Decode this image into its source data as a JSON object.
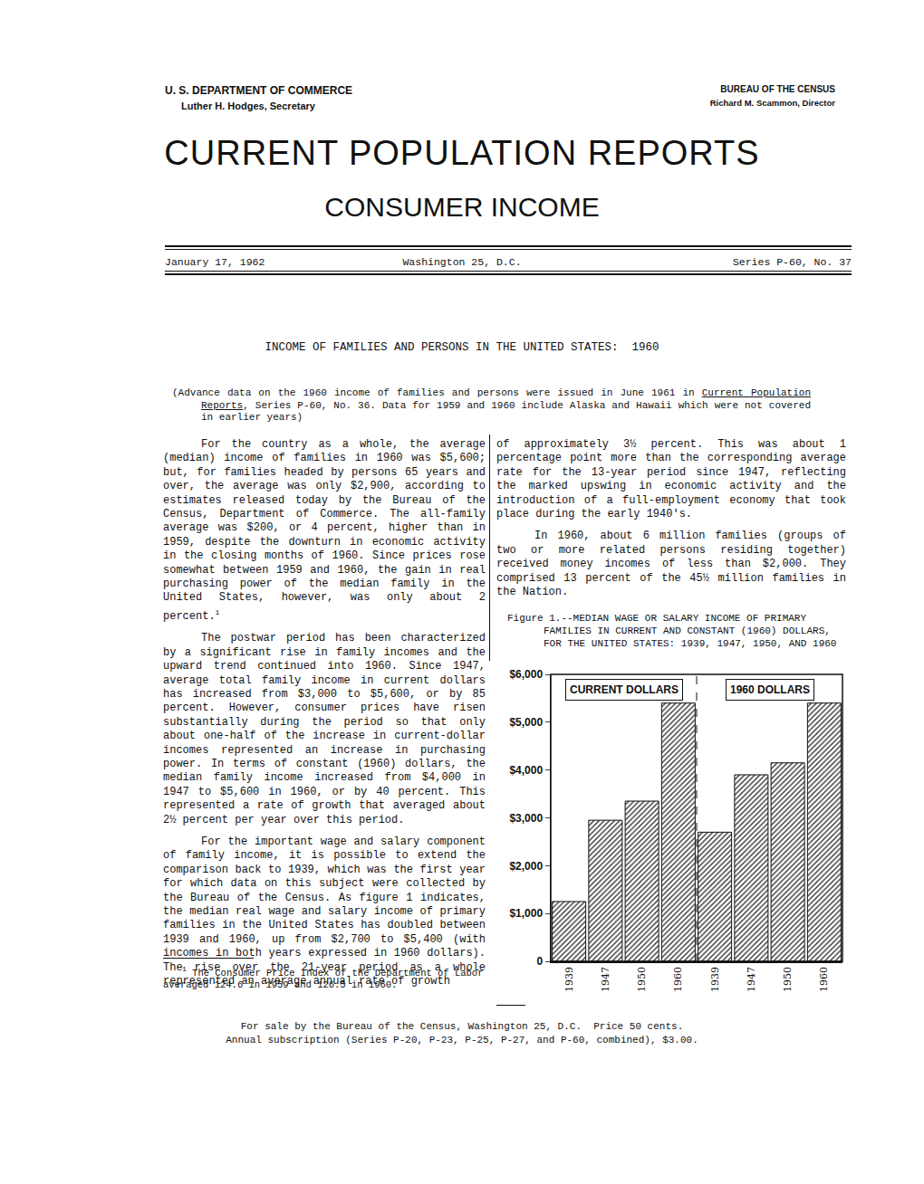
{
  "document": {
    "header": {
      "department": "U. S. DEPARTMENT OF COMMERCE",
      "secretary": "Luther H. Hodges, Secretary",
      "bureau": "BUREAU OF THE CENSUS",
      "director": "Richard M. Scammon, Director"
    },
    "title": "CURRENT POPULATION REPORTS",
    "subtitle": "CONSUMER INCOME",
    "dateline": {
      "date": "January 17, 1962",
      "place": "Washington 25, D.C.",
      "series": "Series P-60, No. 37"
    },
    "headline": "INCOME OF FAMILIES AND PERSONS IN THE UNITED STATES:  1960",
    "note": {
      "before": "(Advance data on the 1960 income of families and persons were issued in June 1961 in ",
      "underlined": "Current Population Reports",
      "after": ", Series P-60, No. 36.  Data for 1959 and 1960 include Alaska and Hawaii which were not covered in earlier years)"
    },
    "left_column": [
      {
        "text": "For the country as a whole, the average (median) income of families in 1960 was $5,600; but, for families headed by persons 65 years and over, the average was only $2,900, according to estimates released today by the Bureau of the Census, Department of Commerce. The all-family average was $200, or 4 percent, higher than in 1959, despite the downturn in economic activity in the closing months of 1960. Since prices rose somewhat between 1959 and 1960, the gain in real purchasing power of the median family in the United States, however, was only about 2 percent.",
        "footnote_mark": "1"
      },
      {
        "text": "The postwar period has been characterized by a significant rise in family incomes and the upward trend continued into 1960. Since 1947, average total family income in current dollars has increased from $3,000 to $5,600, or by 85 percent. However, consumer prices have risen substantially during the period so that only about one-half of the increase in current-dollar incomes represented an increase in purchasing power. In terms of constant (1960) dollars, the median family income increased from $4,000 in 1947 to $5,600 in 1960, or by 40 percent. This represented a rate of growth that averaged about 2½ percent per year over this period."
      },
      {
        "text": "For the important wage and salary component of family income, it is possible to extend the comparison back to 1939, which was the first year for which data on this subject were collected by the Bureau of the Census. As figure 1 indicates, the median real wage and salary income of primary families in the United States has doubled between 1939 and 1960, up from $2,700 to $5,400 (with incomes in both years expressed in 1960 dollars). The rise over the 21-year period as a whole represented an average annual rate of growth"
      }
    ],
    "right_column": [
      {
        "text": "of approximately 3½ percent. This was about 1 percentage point more than the corresponding average rate for the 13-year period since 1947, reflecting the marked upswing in economic activity and the introduction of a full-employment economy that took place during the early 1940's.",
        "continued": true
      },
      {
        "text": "In 1960, about 6 million families (groups of two or more related persons residing together) received money incomes of less than $2,000. They comprised 13 percent of the 45½ million families in the Nation."
      }
    ],
    "footnote": {
      "mark": "1",
      "text": "The Consumer Price Index of the Department of Labor averaged 124.6 in 1959 and 126.5 in 1960."
    },
    "footer": [
      "For sale by the Bureau of the Census, Washington 25, D.C.  Price 50 cents.",
      "Annual subscription (Series P-20, P-23, P-25, P-27, and P-60, combined), $3.00."
    ]
  },
  "chart_data": {
    "type": "bar",
    "title": "Figure 1.--MEDIAN WAGE OR SALARY INCOME OF PRIMARY FAMILIES IN CURRENT AND CONSTANT (1960) DOLLARS, FOR THE UNITED STATES:  1939, 1947, 1950, AND 1960",
    "categories": [
      "1939",
      "1947",
      "1950",
      "1960"
    ],
    "series": [
      {
        "name": "CURRENT DOLLARS",
        "values": [
          1250,
          2950,
          3350,
          5400
        ]
      },
      {
        "name": "1960 DOLLARS",
        "values": [
          2700,
          3900,
          4150,
          5400
        ]
      }
    ],
    "color": "#333333",
    "ylim": [
      0,
      6000
    ],
    "yticks": [
      0,
      {
        "value": 1000,
        "label": "$1,000"
      },
      {
        "value": 2000,
        "label": "$2,000"
      },
      {
        "value": 3000,
        "label": "$3,000"
      },
      {
        "value": 4000,
        "label": "$4,000"
      },
      {
        "value": 5000,
        "label": "$5,000"
      },
      {
        "value": 6000,
        "label": "$6,000"
      }
    ],
    "grid": false
  }
}
